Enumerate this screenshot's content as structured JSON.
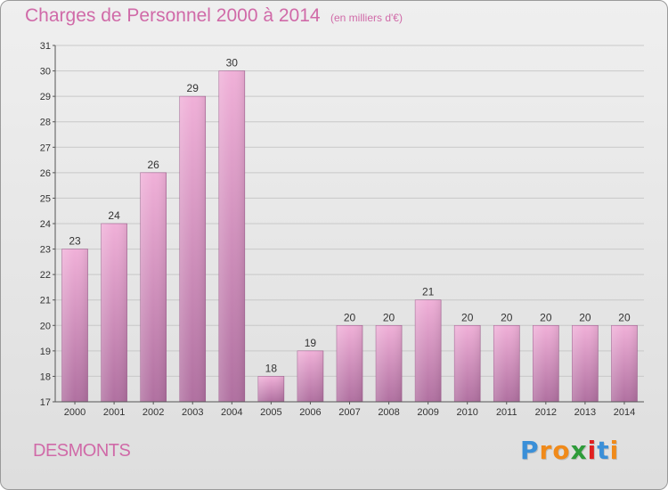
{
  "title": "Charges de Personnel 2000 à 2014",
  "subtitle": "(en milliers d'€)",
  "commune": "DESMONTS",
  "brand": {
    "text": "Proxiti",
    "letter_colors": [
      "#3a8fd8",
      "#f08a1a",
      "#f08a1a",
      "#2e9b3a",
      "#e02020",
      "#3a8fd8",
      "#f08a1a"
    ]
  },
  "colors": {
    "bar_top": "#f0b0d8",
    "bar_bottom": "#b070a0",
    "title": "#d06aa8",
    "grid": "#c8c8c8"
  },
  "chart_data": {
    "type": "bar",
    "title": "Charges de Personnel 2000 à 2014",
    "subtitle": "(en milliers d'€)",
    "categories": [
      "2000",
      "2001",
      "2002",
      "2003",
      "2004",
      "2005",
      "2006",
      "2007",
      "2008",
      "2009",
      "2010",
      "2011",
      "2012",
      "2013",
      "2014"
    ],
    "values": [
      23,
      24,
      26,
      29,
      30,
      18,
      19,
      20,
      20,
      21,
      20,
      20,
      20,
      20,
      20
    ],
    "ylim": [
      17,
      31
    ],
    "yticks": [
      17,
      18,
      19,
      20,
      21,
      22,
      23,
      24,
      25,
      26,
      27,
      28,
      29,
      30,
      31
    ],
    "grid": true,
    "xlabel": "",
    "ylabel": ""
  }
}
